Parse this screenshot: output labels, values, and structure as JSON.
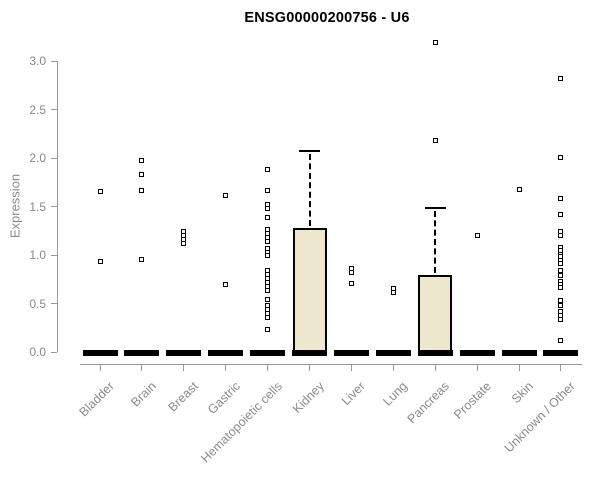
{
  "title": "ENSG00000200756 - U6",
  "colors": {
    "box_fill": "#EDE8CD",
    "axis_line": "#999999",
    "axis_text": "#8a8a8a",
    "marker_border": "#000000",
    "marker_fill": "#ffffff",
    "title_text": "#000000"
  },
  "chart_data": {
    "type": "boxplot",
    "title": "ENSG00000200756 - U6",
    "xlabel": "",
    "ylabel": "Expression",
    "ylim": [
      0.0,
      3.2
    ],
    "yticks": [
      0.0,
      0.5,
      1.0,
      1.5,
      2.0,
      2.5,
      3.0
    ],
    "grid": "off",
    "legend": "none",
    "marker_style": "open-square",
    "categories": [
      "Bladder",
      "Brain",
      "Breast",
      "Gastric",
      "Hematopoietic cells",
      "Kidney",
      "Liver",
      "Lung",
      "Pancreas",
      "Prostate",
      "Skin",
      "Unknown / Other"
    ],
    "series": [
      {
        "label": "Bladder",
        "median": 0.0,
        "q1": 0.0,
        "q3": 0.0,
        "whisker_high": null,
        "outliers": [
          1.65,
          0.93
        ]
      },
      {
        "label": "Brain",
        "median": 0.0,
        "q1": 0.0,
        "q3": 0.0,
        "whisker_high": null,
        "outliers": [
          1.97,
          1.83,
          1.67,
          0.95
        ]
      },
      {
        "label": "Breast",
        "median": 0.0,
        "q1": 0.0,
        "q3": 0.0,
        "whisker_high": null,
        "outliers": [
          1.24,
          1.2,
          1.16,
          1.12
        ]
      },
      {
        "label": "Gastric",
        "median": 0.0,
        "q1": 0.0,
        "q3": 0.0,
        "whisker_high": null,
        "outliers": [
          1.61,
          0.7
        ]
      },
      {
        "label": "Hematopoietic cells",
        "median": 0.0,
        "q1": 0.0,
        "q3": 0.0,
        "whisker_high": null,
        "outliers": [
          1.88,
          1.67,
          1.52,
          1.48,
          1.39,
          1.26,
          1.22,
          1.18,
          1.14,
          1.07,
          1.03,
          1.0,
          0.84,
          0.8,
          0.76,
          0.72,
          0.68,
          0.63,
          0.54,
          0.48,
          0.44,
          0.4,
          0.36,
          0.23
        ]
      },
      {
        "label": "Kidney",
        "median": 0.0,
        "q1": 0.0,
        "q3": 1.27,
        "whisker_high": 2.07,
        "outliers": []
      },
      {
        "label": "Liver",
        "median": 0.0,
        "q1": 0.0,
        "q3": 0.0,
        "whisker_high": null,
        "outliers": [
          0.86,
          0.82,
          0.71
        ]
      },
      {
        "label": "Lung",
        "median": 0.0,
        "q1": 0.0,
        "q3": 0.0,
        "whisker_high": null,
        "outliers": [
          0.65,
          0.61
        ]
      },
      {
        "label": "Pancreas",
        "median": 0.0,
        "q1": 0.0,
        "q3": 0.78,
        "whisker_high": 1.48,
        "outliers": [
          3.19,
          2.18
        ]
      },
      {
        "label": "Prostate",
        "median": 0.0,
        "q1": 0.0,
        "q3": 0.0,
        "whisker_high": null,
        "outliers": [
          1.2
        ]
      },
      {
        "label": "Skin",
        "median": 0.0,
        "q1": 0.0,
        "q3": 0.0,
        "whisker_high": null,
        "outliers": [
          1.68
        ]
      },
      {
        "label": "Unknown / Other",
        "median": 0.0,
        "q1": 0.0,
        "q3": 0.0,
        "whisker_high": null,
        "outliers": [
          2.82,
          2.01,
          1.58,
          1.42,
          1.24,
          1.2,
          1.08,
          1.05,
          1.01,
          0.98,
          0.94,
          0.91,
          0.84,
          0.79,
          0.73,
          0.7,
          0.66,
          0.53,
          0.48,
          0.42,
          0.38,
          0.34,
          0.12
        ]
      }
    ]
  }
}
